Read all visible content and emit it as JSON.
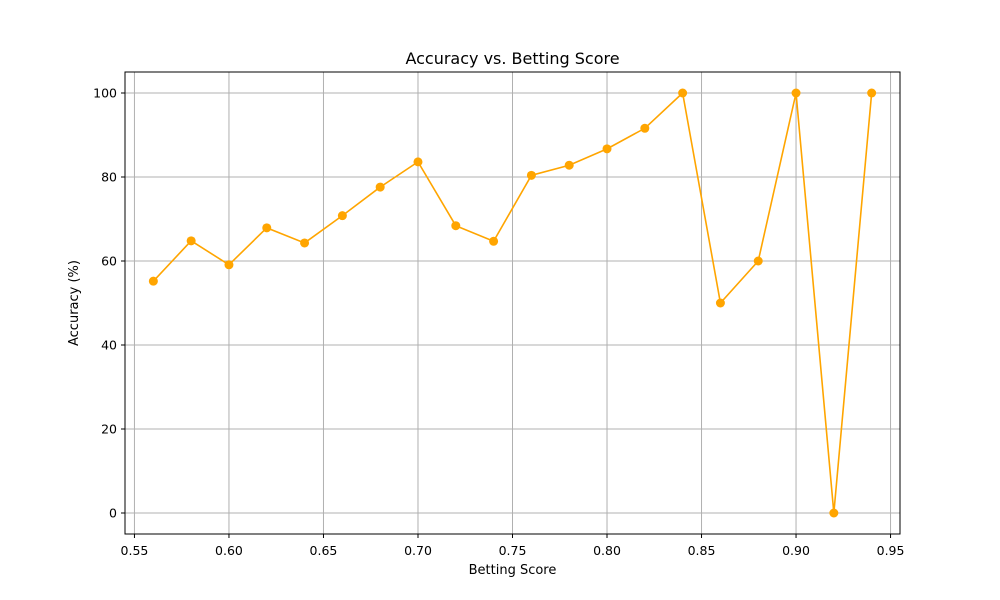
{
  "chart_data": {
    "type": "line",
    "title": "Accuracy vs. Betting Score",
    "xlabel": "Betting Score",
    "ylabel": "Accuracy (%)",
    "xlim": [
      0.545,
      0.955
    ],
    "ylim": [
      -5,
      105
    ],
    "xticks": [
      "0.55",
      "0.60",
      "0.65",
      "0.70",
      "0.75",
      "0.80",
      "0.85",
      "0.90",
      "0.95"
    ],
    "yticks": [
      "0",
      "20",
      "40",
      "60",
      "80",
      "100"
    ],
    "grid": true,
    "series": [
      {
        "color": "#ffa500",
        "marker": "circle",
        "x": [
          0.56,
          0.58,
          0.6,
          0.62,
          0.64,
          0.66,
          0.68,
          0.7,
          0.72,
          0.74,
          0.76,
          0.78,
          0.8,
          0.82,
          0.84,
          0.86,
          0.88,
          0.9,
          0.92,
          0.94
        ],
        "y": [
          55.2,
          64.8,
          59.1,
          67.9,
          64.3,
          70.8,
          77.6,
          83.6,
          68.4,
          64.7,
          80.4,
          82.8,
          86.7,
          91.6,
          100,
          50,
          60,
          100,
          0,
          100
        ]
      }
    ]
  }
}
